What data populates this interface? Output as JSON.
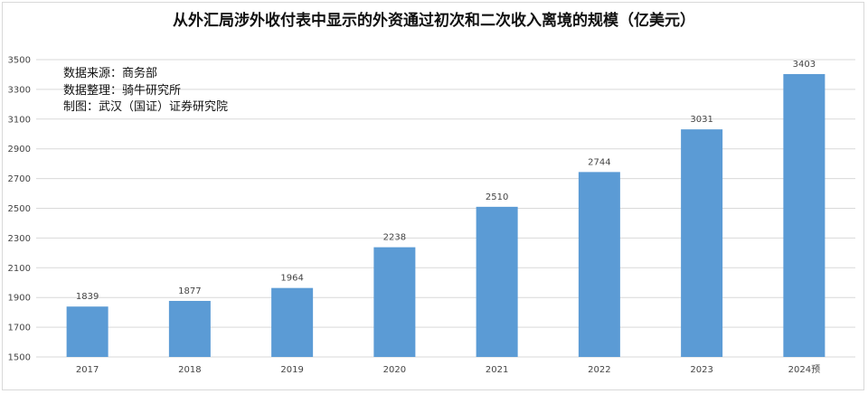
{
  "chart_data": {
    "type": "bar",
    "title": "从外汇局涉外收付表中显示的外资通过初次和二次收入离境的规模（亿美元）",
    "categories": [
      "2017",
      "2018",
      "2019",
      "2020",
      "2021",
      "2022",
      "2023",
      "2024预"
    ],
    "values": [
      1839,
      1877,
      1964,
      2238,
      2510,
      2744,
      3031,
      3403
    ],
    "data_labels": [
      "1839",
      "1877",
      "1964",
      "2238",
      "2510",
      "2744",
      "3031",
      "3403"
    ],
    "ylim": [
      1500,
      3500
    ],
    "yticks": [
      1500,
      1700,
      1900,
      2100,
      2300,
      2500,
      2700,
      2900,
      3100,
      3300,
      3500
    ],
    "xlabel": "",
    "ylabel": "",
    "grid": true,
    "legend": "none",
    "bar_color": "#5b9bd5",
    "grid_color": "#d9d9d9"
  },
  "notes": [
    "数据来源：商务部",
    "数据整理：骑牛研究所",
    "制图：武汉（国证）证券研究院"
  ]
}
